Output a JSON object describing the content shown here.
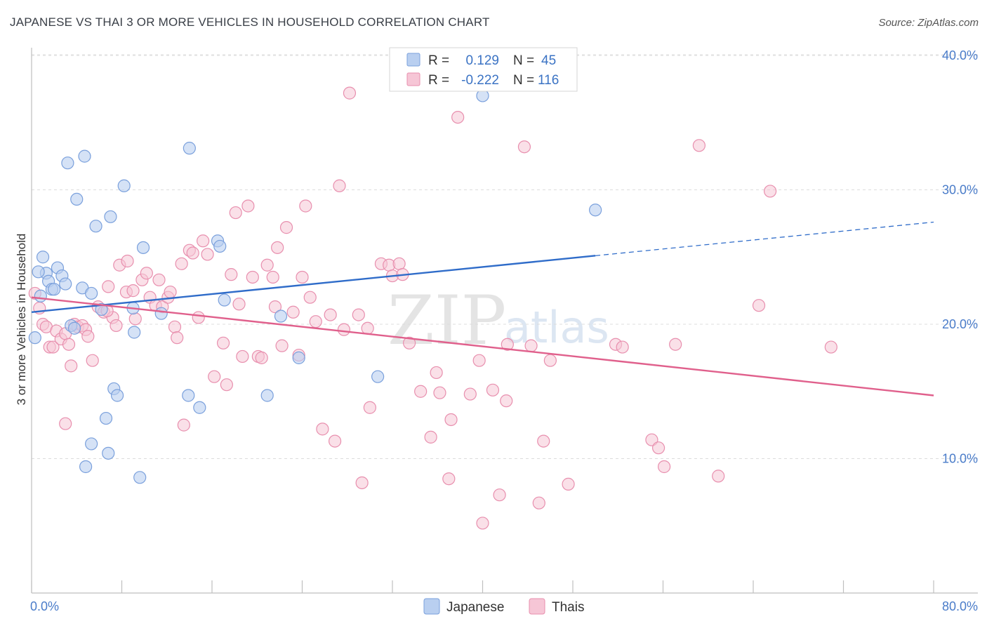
{
  "title": "JAPANESE VS THAI 3 OR MORE VEHICLES IN HOUSEHOLD CORRELATION CHART",
  "source": "Source: ZipAtlas.com",
  "watermark": {
    "zip": "ZIP",
    "atlas": "atlas"
  },
  "colors": {
    "japanese_fill": "#b9cff0",
    "japanese_stroke": "#7aa0dc",
    "japanese_line": "#2f6cc9",
    "thai_fill": "#f6c6d6",
    "thai_stroke": "#e88fae",
    "thai_line": "#e0608c"
  },
  "legend_top": {
    "japanese": {
      "r_label": "R =",
      "r_value": "0.129",
      "n_label": "N =",
      "n_value": "45"
    },
    "thai": {
      "r_label": "R =",
      "r_value": "-0.222",
      "n_label": "N =",
      "n_value": "116"
    }
  },
  "legend_bottom": {
    "japanese": "Japanese",
    "thai": "Thais"
  },
  "chart_data": {
    "type": "scatter",
    "title": "JAPANESE VS THAI 3 OR MORE VEHICLES IN HOUSEHOLD CORRELATION CHART",
    "xlabel": "",
    "ylabel": "3 or more Vehicles in Household",
    "xlim": [
      0,
      80
    ],
    "ylim": [
      0,
      41
    ],
    "x_tick_labels": [
      "0.0%",
      "80.0%"
    ],
    "y_ticks": [
      10,
      20,
      30,
      40
    ],
    "y_tick_labels": [
      "10.0%",
      "20.0%",
      "30.0%",
      "40.0%"
    ],
    "grid": true,
    "series": [
      {
        "name": "Japanese",
        "R": 0.129,
        "N": 45,
        "trend": {
          "x0": 0,
          "y0": 20.9,
          "x1": 50,
          "y1": 25.1,
          "x_dash_end": 80,
          "y_dash_end": 27.6
        },
        "points": [
          [
            0.3,
            19.0
          ],
          [
            0.8,
            22.1
          ],
          [
            1.0,
            25.0
          ],
          [
            1.3,
            23.8
          ],
          [
            1.5,
            23.2
          ],
          [
            1.8,
            22.6
          ],
          [
            2.0,
            22.6
          ],
          [
            2.3,
            24.2
          ],
          [
            2.7,
            23.6
          ],
          [
            3.0,
            23.0
          ],
          [
            3.2,
            32.0
          ],
          [
            3.5,
            19.9
          ],
          [
            3.8,
            19.7
          ],
          [
            4.0,
            29.3
          ],
          [
            4.5,
            22.7
          ],
          [
            4.7,
            32.5
          ],
          [
            5.3,
            22.3
          ],
          [
            5.7,
            27.3
          ],
          [
            6.2,
            21.1
          ],
          [
            6.6,
            13.0
          ],
          [
            6.8,
            10.4
          ],
          [
            7.0,
            28.0
          ],
          [
            7.3,
            15.2
          ],
          [
            7.6,
            14.7
          ],
          [
            8.2,
            30.3
          ],
          [
            9.0,
            21.2
          ],
          [
            9.1,
            19.4
          ],
          [
            9.6,
            8.6
          ],
          [
            9.9,
            25.7
          ],
          [
            11.5,
            20.8
          ],
          [
            13.9,
            14.7
          ],
          [
            14.0,
            33.1
          ],
          [
            14.9,
            13.8
          ],
          [
            16.5,
            26.2
          ],
          [
            16.7,
            25.8
          ],
          [
            17.1,
            21.8
          ],
          [
            20.9,
            14.7
          ],
          [
            22.1,
            20.6
          ],
          [
            23.7,
            17.5
          ],
          [
            30.7,
            16.1
          ],
          [
            40.0,
            37.0
          ],
          [
            50.0,
            28.5
          ],
          [
            4.8,
            9.4
          ],
          [
            5.3,
            11.1
          ],
          [
            0.6,
            23.9
          ]
        ]
      },
      {
        "name": "Thais",
        "R": -0.222,
        "N": 116,
        "trend": {
          "x0": 0,
          "y0": 22.0,
          "x1": 80,
          "y1": 14.7
        },
        "points": [
          [
            0.3,
            22.3
          ],
          [
            0.7,
            21.2
          ],
          [
            1.0,
            20.0
          ],
          [
            1.3,
            19.8
          ],
          [
            1.6,
            18.3
          ],
          [
            1.9,
            18.3
          ],
          [
            2.2,
            19.5
          ],
          [
            2.6,
            18.9
          ],
          [
            3.0,
            19.3
          ],
          [
            3.0,
            12.6
          ],
          [
            3.3,
            18.5
          ],
          [
            3.8,
            20.0
          ],
          [
            4.1,
            19.8
          ],
          [
            4.5,
            19.9
          ],
          [
            4.8,
            19.6
          ],
          [
            5.0,
            19.1
          ],
          [
            5.4,
            17.3
          ],
          [
            5.9,
            21.3
          ],
          [
            6.4,
            20.9
          ],
          [
            6.8,
            22.8
          ],
          [
            7.2,
            20.5
          ],
          [
            7.5,
            19.9
          ],
          [
            7.8,
            24.4
          ],
          [
            8.4,
            22.4
          ],
          [
            8.5,
            24.7
          ],
          [
            9.0,
            22.5
          ],
          [
            9.2,
            20.4
          ],
          [
            9.8,
            23.3
          ],
          [
            10.2,
            23.8
          ],
          [
            10.5,
            22.0
          ],
          [
            11.0,
            21.4
          ],
          [
            11.3,
            23.3
          ],
          [
            11.6,
            21.3
          ],
          [
            12.1,
            22.0
          ],
          [
            12.3,
            22.4
          ],
          [
            12.7,
            19.8
          ],
          [
            13.3,
            24.5
          ],
          [
            13.5,
            12.5
          ],
          [
            14.0,
            25.5
          ],
          [
            14.3,
            25.3
          ],
          [
            14.8,
            20.5
          ],
          [
            15.2,
            26.2
          ],
          [
            15.6,
            25.2
          ],
          [
            16.2,
            16.1
          ],
          [
            17.0,
            18.6
          ],
          [
            17.3,
            15.5
          ],
          [
            17.7,
            23.7
          ],
          [
            18.1,
            28.3
          ],
          [
            18.4,
            21.5
          ],
          [
            18.7,
            17.6
          ],
          [
            19.2,
            28.8
          ],
          [
            19.6,
            23.5
          ],
          [
            20.1,
            17.6
          ],
          [
            20.4,
            17.5
          ],
          [
            20.9,
            24.4
          ],
          [
            21.4,
            23.5
          ],
          [
            21.6,
            21.3
          ],
          [
            21.8,
            25.7
          ],
          [
            22.2,
            18.4
          ],
          [
            22.6,
            27.2
          ],
          [
            23.2,
            20.9
          ],
          [
            23.7,
            17.7
          ],
          [
            24.0,
            23.5
          ],
          [
            24.3,
            28.8
          ],
          [
            24.7,
            22.0
          ],
          [
            25.2,
            20.2
          ],
          [
            25.8,
            12.2
          ],
          [
            26.5,
            20.7
          ],
          [
            26.9,
            11.3
          ],
          [
            27.3,
            30.3
          ],
          [
            27.7,
            19.6
          ],
          [
            28.2,
            37.2
          ],
          [
            29.0,
            20.7
          ],
          [
            29.3,
            8.2
          ],
          [
            29.8,
            19.7
          ],
          [
            30.0,
            13.8
          ],
          [
            31.0,
            24.5
          ],
          [
            31.7,
            24.4
          ],
          [
            32.0,
            23.6
          ],
          [
            32.6,
            24.5
          ],
          [
            32.9,
            23.7
          ],
          [
            33.5,
            18.6
          ],
          [
            34.5,
            15.0
          ],
          [
            35.4,
            11.6
          ],
          [
            35.9,
            16.4
          ],
          [
            36.2,
            14.9
          ],
          [
            37.0,
            8.5
          ],
          [
            37.2,
            12.9
          ],
          [
            37.8,
            35.4
          ],
          [
            38.9,
            14.8
          ],
          [
            39.7,
            17.3
          ],
          [
            40.0,
            5.2
          ],
          [
            40.9,
            15.1
          ],
          [
            41.5,
            7.3
          ],
          [
            42.1,
            14.3
          ],
          [
            42.2,
            18.5
          ],
          [
            43.7,
            33.2
          ],
          [
            44.3,
            18.4
          ],
          [
            45.0,
            6.7
          ],
          [
            45.4,
            11.3
          ],
          [
            46.0,
            17.3
          ],
          [
            47.6,
            8.1
          ],
          [
            51.8,
            18.5
          ],
          [
            52.4,
            18.3
          ],
          [
            55.0,
            11.4
          ],
          [
            55.6,
            10.8
          ],
          [
            56.1,
            9.4
          ],
          [
            57.1,
            18.5
          ],
          [
            59.2,
            33.3
          ],
          [
            60.9,
            8.7
          ],
          [
            64.5,
            21.4
          ],
          [
            65.5,
            29.9
          ],
          [
            70.9,
            18.3
          ],
          [
            3.5,
            16.9
          ],
          [
            6.7,
            21.0
          ],
          [
            12.9,
            19.0
          ]
        ]
      }
    ]
  }
}
